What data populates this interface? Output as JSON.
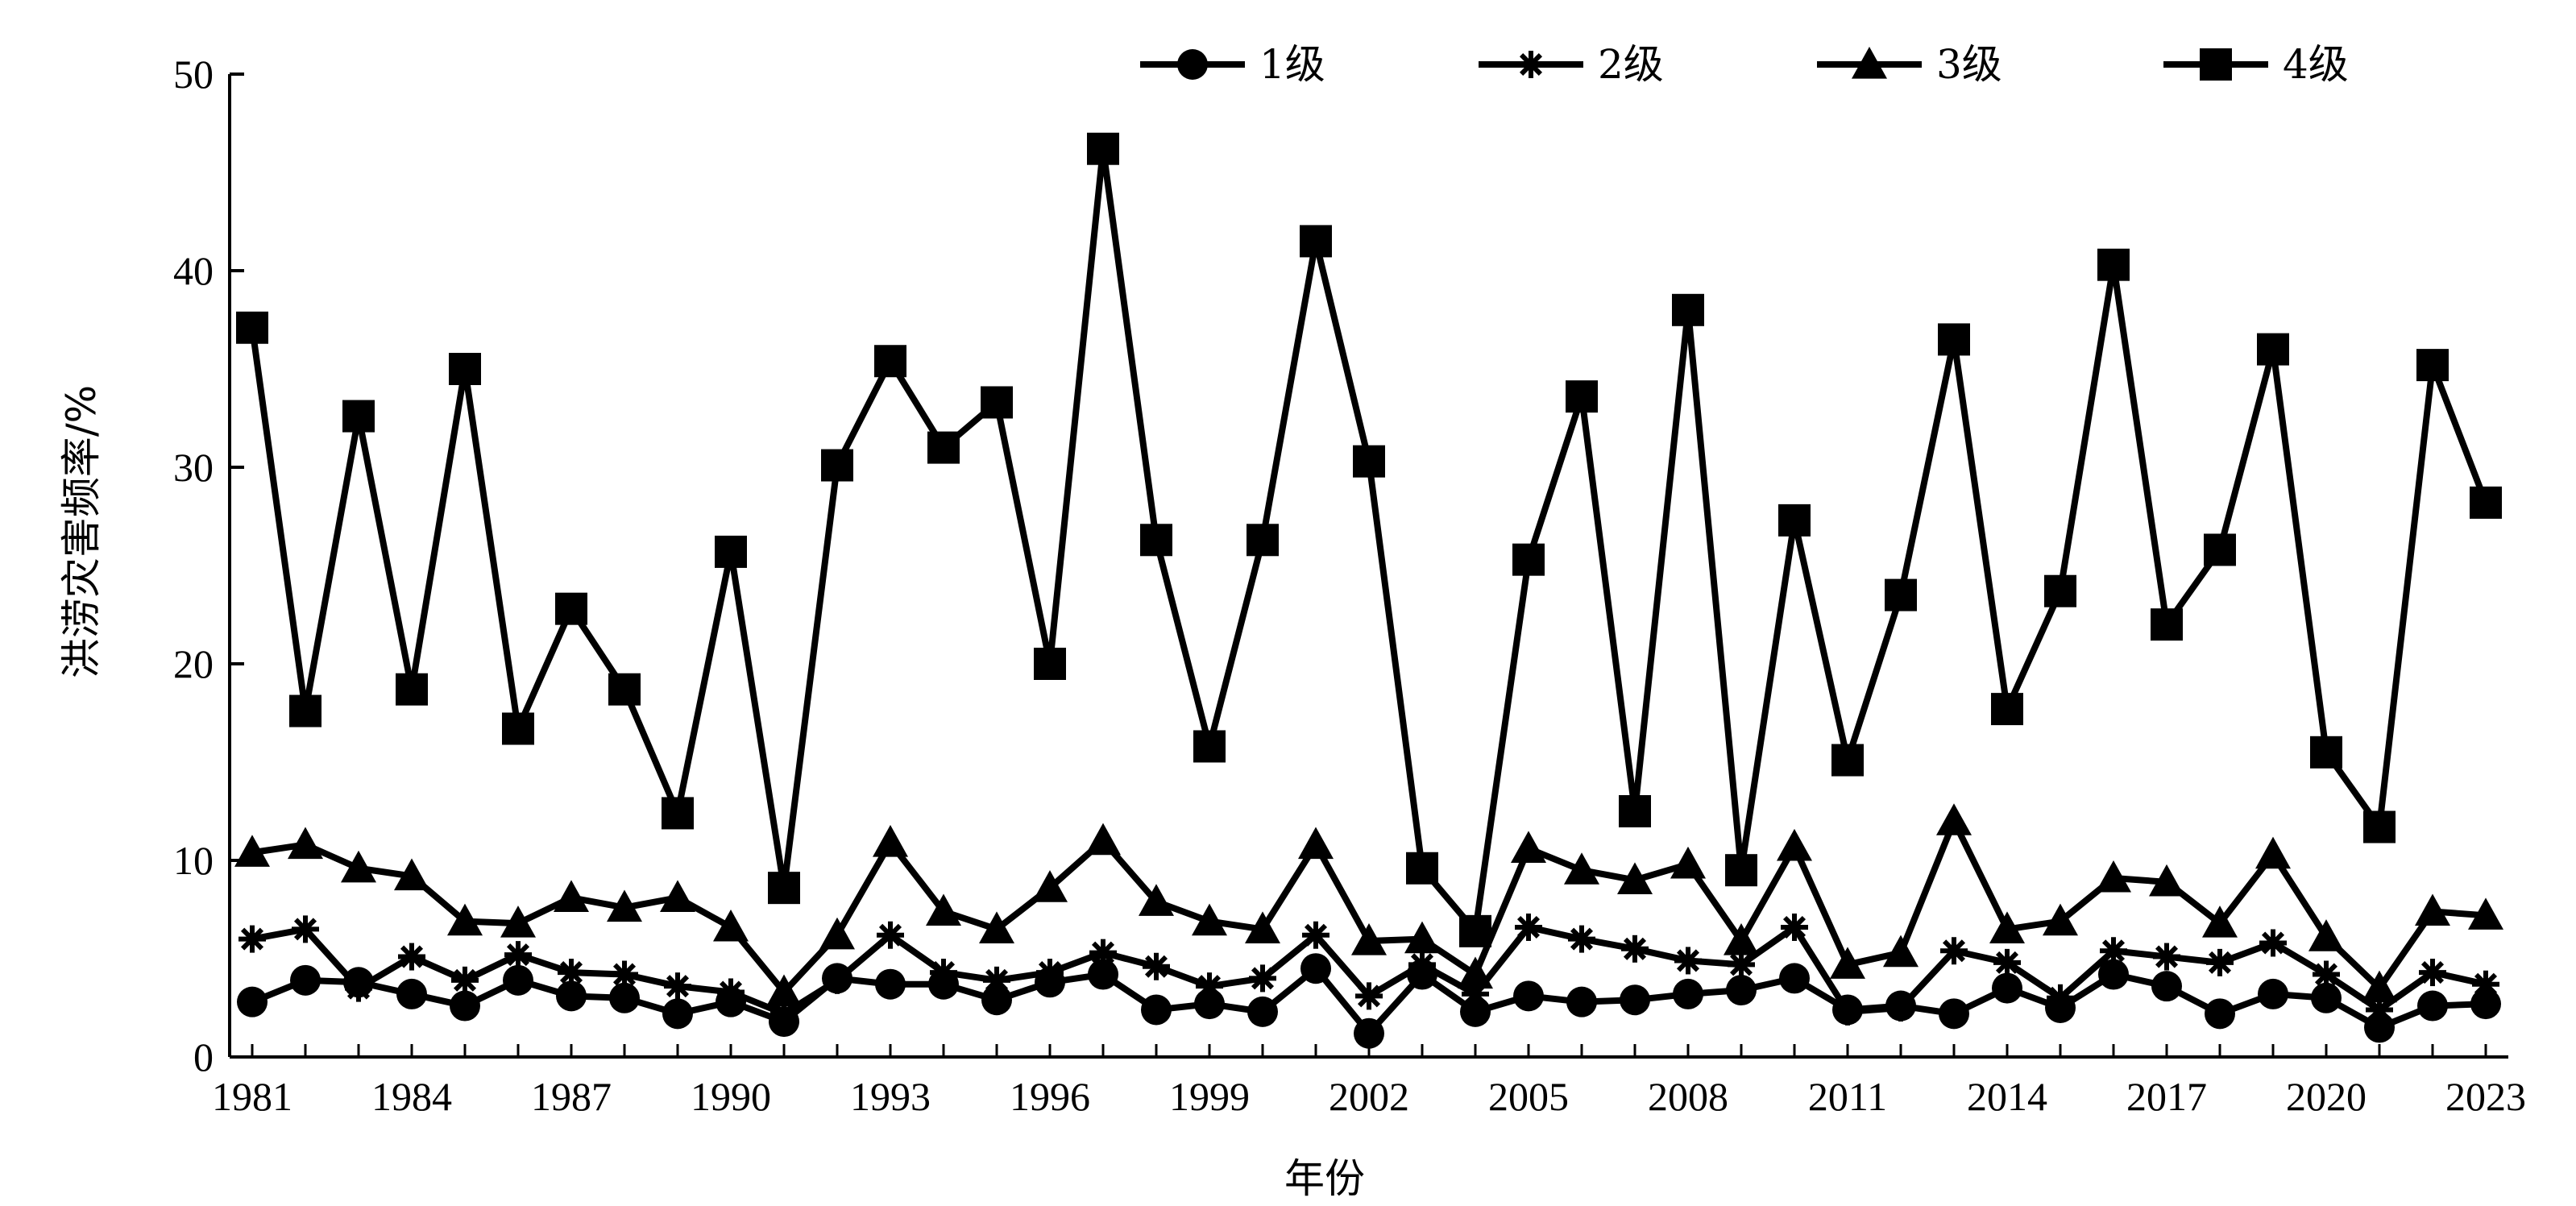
{
  "chart_data": {
    "type": "line",
    "xlabel": "年份",
    "ylabel": "洪涝灾害频率/%",
    "ylim": [
      0,
      50
    ],
    "yticks": [
      0,
      10,
      20,
      30,
      40,
      50
    ],
    "xticks": [
      "1981",
      "1984",
      "1987",
      "1990",
      "1993",
      "1996",
      "1999",
      "2002",
      "2005",
      "2008",
      "2011",
      "2014",
      "2017",
      "2020",
      "2023"
    ],
    "grid": false,
    "legend": "top",
    "x": [
      1981,
      1982,
      1983,
      1984,
      1985,
      1986,
      1987,
      1988,
      1989,
      1990,
      1991,
      1992,
      1993,
      1994,
      1995,
      1996,
      1997,
      1998,
      1999,
      2000,
      2001,
      2002,
      2003,
      2004,
      2005,
      2006,
      2007,
      2008,
      2009,
      2010,
      2011,
      2012,
      2013,
      2014,
      2015,
      2016,
      2017,
      2018,
      2019,
      2020,
      2021,
      2022,
      2023
    ],
    "series": [
      {
        "name": "1级",
        "marker": "circle",
        "values": [
          2.8,
          3.9,
          3.8,
          3.2,
          2.6,
          3.9,
          3.1,
          3.0,
          2.2,
          2.8,
          1.8,
          4.0,
          3.7,
          3.7,
          2.9,
          3.8,
          4.2,
          2.4,
          2.7,
          2.3,
          4.5,
          1.2,
          4.2,
          2.3,
          3.1,
          2.8,
          2.9,
          3.2,
          3.4,
          4.0,
          2.4,
          2.6,
          2.2,
          3.5,
          2.5,
          4.2,
          3.6,
          2.2,
          3.2,
          3.0,
          1.5,
          2.6,
          2.7
        ]
      },
      {
        "name": "2级",
        "marker": "star",
        "values": [
          6.0,
          6.5,
          3.5,
          5.1,
          3.9,
          5.2,
          4.3,
          4.2,
          3.6,
          3.3,
          2.2,
          3.9,
          6.2,
          4.3,
          3.9,
          4.3,
          5.3,
          4.6,
          3.6,
          4.0,
          6.2,
          3.1,
          4.7,
          3.2,
          6.6,
          6.0,
          5.5,
          4.9,
          4.7,
          6.6,
          2.3,
          2.5,
          5.4,
          4.8,
          3.0,
          5.4,
          5.1,
          4.8,
          5.8,
          4.2,
          2.4,
          4.3,
          3.7
        ]
      },
      {
        "name": "3级",
        "marker": "triangle",
        "values": [
          10.4,
          10.8,
          9.6,
          9.2,
          6.9,
          6.8,
          8.1,
          7.6,
          8.1,
          6.6,
          3.3,
          6.2,
          10.9,
          7.4,
          6.5,
          8.6,
          11.0,
          7.9,
          6.9,
          6.5,
          10.8,
          5.9,
          6.0,
          4.2,
          10.6,
          9.5,
          9.0,
          9.8,
          5.9,
          10.7,
          4.7,
          5.3,
          12.0,
          6.5,
          6.9,
          9.1,
          8.9,
          6.8,
          10.3,
          6.1,
          3.5,
          7.4,
          7.2
        ]
      },
      {
        "name": "4级",
        "marker": "square",
        "values": [
          37.1,
          17.6,
          32.6,
          18.7,
          35.0,
          16.7,
          22.8,
          18.7,
          12.4,
          25.7,
          8.6,
          30.1,
          35.4,
          31.0,
          33.3,
          20.0,
          46.2,
          26.3,
          15.8,
          26.3,
          41.5,
          30.3,
          9.6,
          6.4,
          25.3,
          33.6,
          12.5,
          38.0,
          9.5,
          27.3,
          15.1,
          23.5,
          36.5,
          17.7,
          23.7,
          40.3,
          22.0,
          25.8,
          36.0,
          15.5,
          11.7,
          35.2,
          28.2
        ]
      }
    ]
  }
}
